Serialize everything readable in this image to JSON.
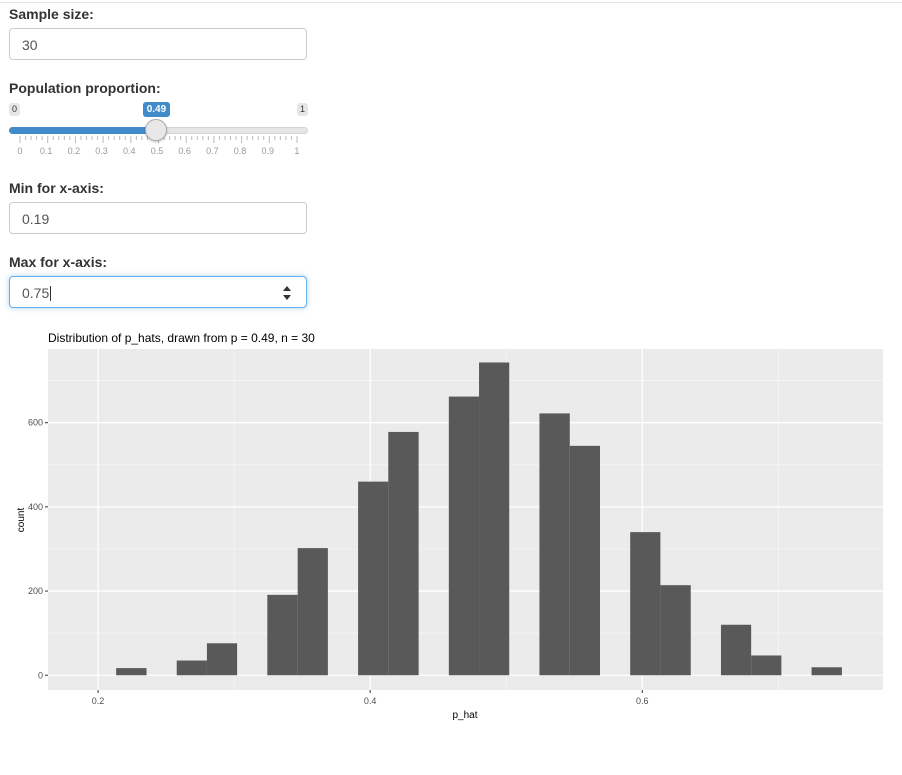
{
  "controls": {
    "sample_size": {
      "label": "Sample size:",
      "value": "30"
    },
    "population_proportion": {
      "label": "Population proportion:",
      "min_label": "0",
      "max_label": "1",
      "value_label": "0.49",
      "min": 0,
      "max": 1,
      "value": 0.49,
      "ticks": [
        "0",
        "0.1",
        "0.2",
        "0.3",
        "0.4",
        "0.5",
        "0.6",
        "0.7",
        "0.8",
        "0.9",
        "1"
      ]
    },
    "x_min": {
      "label": "Min for x-axis:",
      "value": "0.19"
    },
    "x_max": {
      "label": "Max for x-axis:",
      "value": "0.75"
    }
  },
  "colors": {
    "accent": "#428bca",
    "panel_bg": "#ebebeb",
    "bar_fill": "#595959",
    "grid": "#ffffff"
  },
  "chart_data": {
    "type": "bar",
    "title": "Distribution of p_hats, drawn from p = 0.49, n = 30",
    "xlabel": "p_hat",
    "ylabel": "count",
    "xlim": [
      0.19,
      0.75
    ],
    "ylim": [
      0,
      750
    ],
    "x_ticks": [
      {
        "value": 0.2,
        "label": "0.2"
      },
      {
        "value": 0.4,
        "label": "0.4"
      },
      {
        "value": 0.6,
        "label": "0.6"
      }
    ],
    "y_ticks": [
      {
        "value": 0,
        "label": "0"
      },
      {
        "value": 200,
        "label": "200"
      },
      {
        "value": 400,
        "label": "400"
      },
      {
        "value": 600,
        "label": "600"
      }
    ],
    "grid": true,
    "bins": [
      {
        "x0": 0.2133,
        "x1": 0.2356,
        "count": 17
      },
      {
        "x0": 0.2578,
        "x1": 0.28,
        "count": 35
      },
      {
        "x0": 0.28,
        "x1": 0.3022,
        "count": 76
      },
      {
        "x0": 0.3244,
        "x1": 0.3467,
        "count": 191
      },
      {
        "x0": 0.3467,
        "x1": 0.3689,
        "count": 302
      },
      {
        "x0": 0.3911,
        "x1": 0.4133,
        "count": 460
      },
      {
        "x0": 0.4133,
        "x1": 0.4356,
        "count": 578
      },
      {
        "x0": 0.4578,
        "x1": 0.48,
        "count": 662
      },
      {
        "x0": 0.48,
        "x1": 0.5022,
        "count": 743
      },
      {
        "x0": 0.5244,
        "x1": 0.5467,
        "count": 622
      },
      {
        "x0": 0.5467,
        "x1": 0.5689,
        "count": 545
      },
      {
        "x0": 0.5911,
        "x1": 0.6133,
        "count": 340
      },
      {
        "x0": 0.6133,
        "x1": 0.6356,
        "count": 214
      },
      {
        "x0": 0.6578,
        "x1": 0.68,
        "count": 120
      },
      {
        "x0": 0.68,
        "x1": 0.7022,
        "count": 47
      },
      {
        "x0": 0.7244,
        "x1": 0.7467,
        "count": 19
      }
    ]
  }
}
